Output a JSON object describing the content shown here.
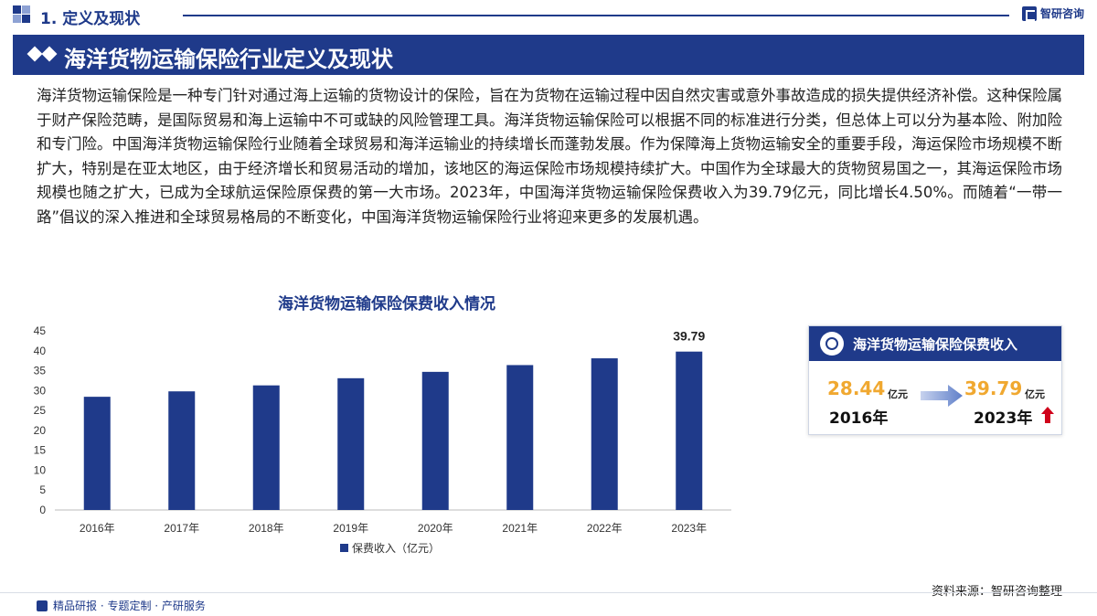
{
  "header": {
    "section_title": "1. 定义及现状",
    "brand": "智研咨询"
  },
  "banner": {
    "title": "海洋货物运输保险行业定义及现状"
  },
  "paragraph": "海洋货物运输保险是一种专门针对通过海上运输的货物设计的保险，旨在为货物在运输过程中因自然灾害或意外事故造成的损失提供经济补偿。这种保险属于财产保险范畴，是国际贸易和海上运输中不可或缺的风险管理工具。海洋货物运输保险可以根据不同的标准进行分类，但总体上可以分为基本险、附加险和专门险。中国海洋货物运输保险行业随着全球贸易和海洋运输业的持续增长而蓬勃发展。作为保障海上货物运输安全的重要手段，海运保险市场规模不断扩大，特别是在亚太地区，由于经济增长和贸易活动的增加，该地区的海运保险市场规模持续扩大。中国作为全球最大的货物贸易国之一，其海运保险市场规模也随之扩大，已成为全球航运保险原保费的第一大市场。2023年，中国海洋货物运输保险保费收入为39.79亿元，同比增长4.50%。而随着“一带一路”倡议的深入推进和全球贸易格局的不断变化，中国海洋货物运输保险行业将迎来更多的发展机遇。",
  "chart_data": {
    "type": "bar",
    "title": "海洋货物运输保险保费收入情况",
    "categories": [
      "2016年",
      "2017年",
      "2018年",
      "2019年",
      "2020年",
      "2021年",
      "2022年",
      "2023年"
    ],
    "series": [
      {
        "name": "保费收入（亿元）",
        "values": [
          28.44,
          29.8,
          31.3,
          33.1,
          34.7,
          36.4,
          38.1,
          39.79
        ]
      }
    ],
    "data_labels": [
      {
        "index": 7,
        "text": "39.79"
      }
    ],
    "y_ticks": [
      "0",
      "5",
      "10",
      "15",
      "20",
      "25",
      "30",
      "35",
      "40",
      "45"
    ],
    "ylim": [
      0,
      45
    ],
    "legend_position": "bottom",
    "bar_color": "#1f3a8a"
  },
  "card": {
    "title": "海洋货物运输保险保费收入",
    "start_value": "28.44",
    "start_unit": "亿元",
    "start_year": "2016年",
    "end_value": "39.79",
    "end_unit": "亿元",
    "end_year": "2023年"
  },
  "source": "资料来源：智研咨询整理",
  "footer": "精品研报 · 专题定制 · 产研服务",
  "colors": {
    "primary": "#1f3a8a",
    "accent": "#f0a830",
    "up_arrow": "#d0021b"
  }
}
